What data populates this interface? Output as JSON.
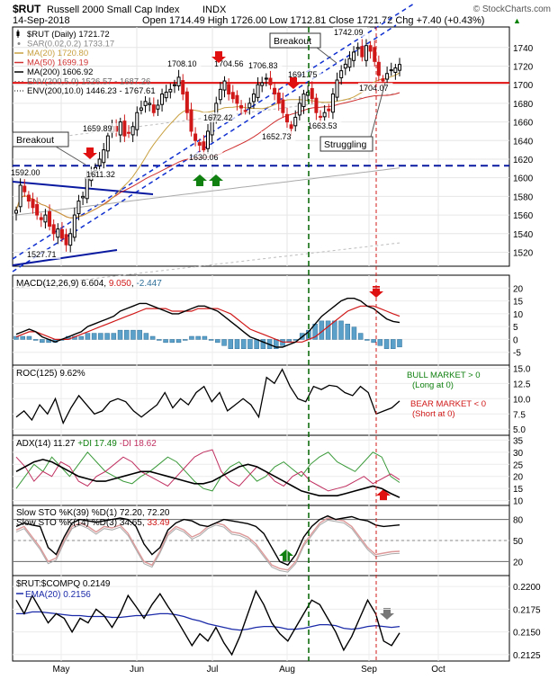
{
  "header": {
    "symbol": "$RUT",
    "name": "Russell 2000 Small Cap Index",
    "exchange": "INDX",
    "brand": "© StockCharts.com",
    "date": "14-Sep-2018",
    "ohlc": "Open 1714.49  High 1726.00  Low 1712.81  Close 1721.72  Chg +7.40 (+0.43%)",
    "ohlc_arrow": "▲"
  },
  "price_panel": {
    "legend": [
      {
        "text": "$RUT (Daily) 1721.72",
        "color": "#000000",
        "marker": "candle"
      },
      {
        "text": "SAR(0.02,0.2) 1733.17",
        "color": "#888888",
        "marker": "dot"
      },
      {
        "text": "MA(20) 1720.80",
        "color": "#c8a040",
        "marker": "line"
      },
      {
        "text": "MA(50) 1699.19",
        "color": "#d03030",
        "marker": "line"
      },
      {
        "text": "MA(200) 1606.92",
        "color": "#000000",
        "marker": "line"
      },
      {
        "text": "ENV(200,5.0) 1526.57 - 1687.26",
        "color": "#999999",
        "marker": "dash"
      },
      {
        "text": "ENV(200,10.0) 1446.23 - 1767.61",
        "color": "#000000",
        "marker": "dots"
      }
    ],
    "annotations": [
      {
        "text": "Breakout",
        "boxed": true
      },
      {
        "text": "Breakout",
        "boxed": true
      },
      {
        "text": "Struggling",
        "boxed": true
      }
    ],
    "price_labels": [
      "1592.00",
      "1527.71",
      "1611.32",
      "1659.89",
      "1630.06",
      "1708.10",
      "1704.56",
      "1672.42",
      "1706.83",
      "1652.73",
      "1691.75",
      "1663.53",
      "1742.09",
      "1704.07"
    ]
  },
  "macd_panel": {
    "label": "MACD(12,26,9) 6.604, 9.050, -2.447",
    "parts": [
      "MACD(12,26,9) ",
      "6.604",
      ", ",
      "9.050",
      ", ",
      "-2.447"
    ]
  },
  "roc_panel": {
    "label": "ROC(125) 9.62%",
    "bull": "BULL MARKET > 0",
    "bull2": "(Long at 0)",
    "bear": "BEAR MARKET < 0",
    "bear2": "(Short at 0)"
  },
  "adx_panel": {
    "label": "ADX(14) 11.27",
    "parts": [
      "ADX(14) 11.27 ",
      "+DI 17.49",
      " ",
      "-DI 18.62"
    ]
  },
  "sto_panel": {
    "label1": "Slow STO %K(39) %D(1) 72.20, 72.20",
    "label2": "Slow STO %K(14) %D(3) 34.65, ",
    "label2b": "33.49"
  },
  "rel_panel": {
    "label": "$RUT:$COMPQ 0.2149",
    "ema": "EMA(20) 0.2156"
  },
  "x_axis": {
    "months": [
      "May",
      "Jun",
      "Jul",
      "Aug",
      "Sep",
      "Oct"
    ]
  },
  "colors": {
    "up": "#000000",
    "down": "#d01818",
    "resistance": "#e01010",
    "support": "#0a1aa0",
    "channel": "#1030d0",
    "green_line": "#006400",
    "red_line": "#d01818",
    "macd_hist": "#5aa0c8"
  },
  "chart_data": [
    {
      "type": "candlestick",
      "title": "$RUT Russell 2000 Small Cap Index INDX",
      "y_ticks": [
        1520,
        1540,
        1560,
        1580,
        1600,
        1620,
        1640,
        1660,
        1680,
        1700,
        1720,
        1740
      ],
      "ylim": [
        1505,
        1762
      ],
      "close_series": [
        1565,
        1592,
        1585,
        1575,
        1568,
        1560,
        1555,
        1560,
        1548,
        1540,
        1545,
        1535,
        1528,
        1540,
        1560,
        1575,
        1580,
        1600,
        1605,
        1611,
        1620,
        1630,
        1645,
        1655,
        1650,
        1660,
        1645,
        1648,
        1655,
        1670,
        1675,
        1682,
        1680,
        1670,
        1678,
        1690,
        1692,
        1695,
        1700,
        1708,
        1690,
        1670,
        1650,
        1640,
        1635,
        1630,
        1650,
        1665,
        1680,
        1695,
        1704,
        1690,
        1685,
        1680,
        1675,
        1672,
        1680,
        1690,
        1700,
        1702,
        1707,
        1700,
        1690,
        1680,
        1670,
        1660,
        1653,
        1665,
        1680,
        1690,
        1692,
        1685,
        1670,
        1665,
        1670,
        1672,
        1690,
        1705,
        1715,
        1722,
        1728,
        1735,
        1740,
        1730,
        1742,
        1736,
        1725,
        1710,
        1704,
        1712,
        1716,
        1718,
        1721.72
      ],
      "levels": [
        {
          "name": "resistance",
          "value": 1702
        },
        {
          "name": "support",
          "value": 1613
        }
      ],
      "series": [
        {
          "name": "MA(20)",
          "last": 1720.8
        },
        {
          "name": "MA(50)",
          "last": 1699.19
        },
        {
          "name": "MA(200)",
          "last": 1606.92
        }
      ]
    },
    {
      "type": "line+bar",
      "title": "MACD(12,26,9) 6.604, 9.050, -2.447",
      "y_ticks": [
        -10,
        -5,
        0,
        5,
        10,
        15,
        20,
        25
      ],
      "ylim": [
        -10,
        25
      ],
      "macd": [
        2,
        3,
        4,
        3,
        1,
        0,
        -1,
        0,
        1,
        2,
        3,
        5,
        6,
        7,
        8,
        9,
        11,
        12,
        13,
        14,
        14,
        13,
        12,
        11,
        10,
        10,
        11,
        12,
        13,
        13,
        12,
        11,
        9,
        7,
        5,
        3,
        1,
        0,
        -1,
        -2,
        -3,
        -3,
        -2,
        -1,
        1,
        3,
        6,
        9,
        11,
        13,
        15,
        16,
        16,
        15,
        13,
        12,
        10,
        8,
        7,
        6.6
      ],
      "signal": [
        1,
        2,
        3,
        3,
        2,
        1,
        0,
        0,
        0,
        1,
        2,
        3,
        4,
        5,
        6,
        7,
        8,
        9,
        10,
        11,
        12,
        12,
        12,
        12,
        11,
        11,
        11,
        11,
        12,
        12,
        12,
        12,
        11,
        10,
        8,
        6,
        4,
        3,
        2,
        1,
        0,
        -1,
        -1,
        -1,
        -1,
        0,
        1,
        3,
        5,
        7,
        9,
        11,
        12,
        13,
        13,
        13,
        12,
        11,
        10,
        9.05
      ]
    },
    {
      "type": "line",
      "title": "ROC(125) 9.62%",
      "y_ticks": [
        5,
        7.5,
        10,
        12.5,
        15
      ],
      "ylim": [
        4,
        15.5
      ],
      "values": [
        7,
        8,
        6.5,
        9,
        7.5,
        10,
        6,
        8.5,
        10.5,
        9,
        7.5,
        8,
        9.5,
        10,
        9.5,
        8,
        7,
        8,
        9,
        11,
        8.5,
        10,
        9,
        11,
        12,
        9.5,
        11,
        8,
        9,
        10,
        9,
        7,
        13.5,
        12.5,
        14.8,
        12,
        10,
        9.5,
        12,
        11.5,
        12.2,
        12,
        11,
        10.5,
        12,
        11,
        7.5,
        8,
        8.5,
        9.62
      ]
    },
    {
      "type": "line",
      "title": "ADX(14) 11.27 +DI 17.49 -DI 18.62",
      "y_ticks": [
        10,
        15,
        20,
        25,
        30,
        35
      ],
      "ylim": [
        8,
        37
      ],
      "series": [
        {
          "name": "ADX(14)",
          "values": [
            22,
            24,
            26,
            27,
            26,
            24,
            22,
            20,
            19,
            18,
            18,
            19,
            20,
            21,
            22,
            22,
            21,
            20,
            19,
            18,
            17,
            17,
            18,
            20,
            22,
            24,
            25,
            24,
            22,
            20,
            18,
            16,
            14,
            13,
            12,
            12,
            12,
            13,
            14,
            15,
            16,
            15,
            13,
            11.27
          ]
        },
        {
          "name": "+DI",
          "values": [
            15,
            20,
            25,
            22,
            28,
            24,
            20,
            25,
            30,
            26,
            22,
            20,
            18,
            17,
            20,
            22,
            25,
            28,
            26,
            22,
            18,
            15,
            14,
            20,
            24,
            26,
            22,
            18,
            20,
            24,
            26,
            23,
            20,
            25,
            28,
            30,
            26,
            24,
            22,
            26,
            30,
            28,
            20,
            17.49
          ]
        },
        {
          "name": "-DI",
          "values": [
            28,
            24,
            18,
            22,
            20,
            26,
            24,
            18,
            16,
            20,
            22,
            25,
            28,
            26,
            22,
            20,
            18,
            16,
            20,
            24,
            28,
            30,
            31,
            22,
            18,
            16,
            20,
            24,
            22,
            18,
            16,
            20,
            22,
            18,
            16,
            14,
            15,
            16,
            18,
            20,
            17,
            19,
            21,
            18.62
          ]
        }
      ]
    },
    {
      "type": "line",
      "title": "Slow STO",
      "y_ticks": [
        20,
        50,
        80
      ],
      "ylim": [
        0,
        100
      ],
      "series": [
        {
          "name": "%K(39)",
          "values": [
            70,
            75,
            72,
            70,
            40,
            30,
            55,
            75,
            80,
            78,
            76,
            78,
            80,
            82,
            80,
            70,
            45,
            30,
            40,
            65,
            75,
            80,
            78,
            72,
            70,
            75,
            80,
            78,
            76,
            74,
            70,
            60,
            40,
            20,
            15,
            30,
            55,
            70,
            80,
            85,
            80,
            82,
            84,
            80,
            78,
            72,
            70,
            71,
            72.2
          ]
        },
        {
          "name": "%K(14)",
          "values": [
            65,
            70,
            55,
            40,
            20,
            25,
            50,
            70,
            75,
            70,
            62,
            70,
            68,
            72,
            60,
            40,
            20,
            15,
            35,
            60,
            70,
            65,
            55,
            60,
            70,
            75,
            72,
            62,
            60,
            55,
            45,
            30,
            15,
            10,
            8,
            20,
            45,
            60,
            75,
            82,
            80,
            78,
            70,
            55,
            40,
            30,
            32,
            34,
            34.65
          ]
        }
      ]
    },
    {
      "type": "line",
      "title": "$RUT:$COMPQ 0.2149",
      "y_ticks": [
        0.2125,
        0.215,
        0.2175,
        0.22
      ],
      "ylim": [
        0.2118,
        0.2212
      ],
      "series": [
        {
          "name": "$RUT:$COMPQ",
          "values": [
            0.2185,
            0.217,
            0.219,
            0.2175,
            0.216,
            0.217,
            0.2165,
            0.215,
            0.2165,
            0.216,
            0.2175,
            0.2168,
            0.2155,
            0.217,
            0.219,
            0.2178,
            0.2165,
            0.218,
            0.2192,
            0.2178,
            0.2165,
            0.215,
            0.2135,
            0.2148,
            0.214,
            0.2155,
            0.2138,
            0.2125,
            0.2145,
            0.217,
            0.2195,
            0.218,
            0.216,
            0.2148,
            0.214,
            0.2155,
            0.217,
            0.2185,
            0.218,
            0.2165,
            0.215,
            0.213,
            0.2145,
            0.2165,
            0.2185,
            0.217,
            0.214,
            0.2135,
            0.2149
          ]
        },
        {
          "name": "EMA(20)",
          "values": [
            0.217,
            0.217,
            0.2172,
            0.2172,
            0.2171,
            0.217,
            0.2169,
            0.2168,
            0.2168,
            0.2167,
            0.2167,
            0.2167,
            0.2166,
            0.2166,
            0.2167,
            0.2168,
            0.2168,
            0.2169,
            0.217,
            0.217,
            0.2169,
            0.2167,
            0.2164,
            0.2162,
            0.2159,
            0.2157,
            0.2155,
            0.2153,
            0.2152,
            0.2153,
            0.2155,
            0.2156,
            0.2156,
            0.2155,
            0.2153,
            0.2153,
            0.2154,
            0.2156,
            0.2158,
            0.2158,
            0.2157,
            0.2154,
            0.2153,
            0.2154,
            0.2156,
            0.2157,
            0.2156,
            0.2155,
            0.2156
          ]
        }
      ]
    }
  ]
}
